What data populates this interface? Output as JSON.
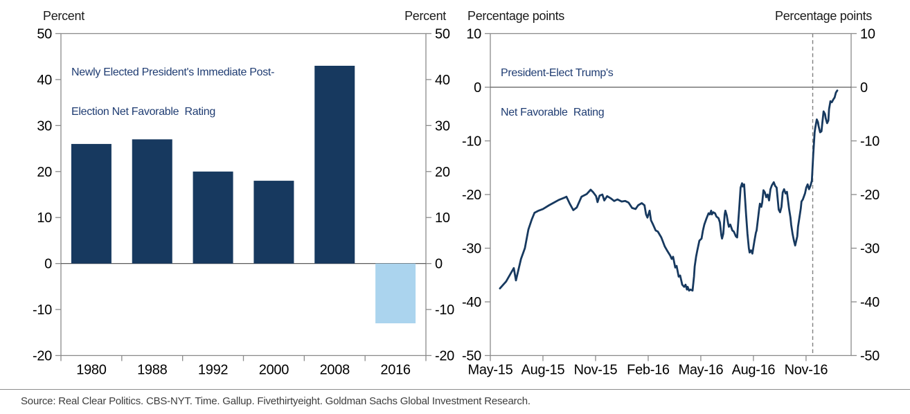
{
  "page": {
    "source_note": "Source: Real Clear Politics. CBS-NYT. Time. Gallup. Fivethirtyeight. Goldman Sachs Global Investment Research."
  },
  "style": {
    "box_color": "#8a8a8a",
    "zero_line_color": "#5a5a5a",
    "dashed_line_color": "#7f7f7f",
    "title_color": "#1f3c72",
    "text_color": "#000000"
  },
  "chart_data": [
    {
      "type": "bar",
      "panel": "left",
      "unit_label_left": "Percent",
      "unit_label_right": "Percent",
      "title": "Newly Elected President's Immediate Post-Election Net Favorable Rating",
      "title_lines": [
        "Newly Elected President's Immediate Post-",
        "Election Net Favorable  Rating"
      ],
      "categories": [
        "1980",
        "1988",
        "1992",
        "2000",
        "2008",
        "2016"
      ],
      "values": [
        26,
        27,
        20,
        18,
        43,
        -13
      ],
      "ylim": [
        -20,
        50
      ],
      "y_ticks": [
        50,
        40,
        30,
        20,
        10,
        0,
        -10,
        -20
      ],
      "grid": false,
      "bar_color": "#17395f",
      "highlight_color": "#abd4ee",
      "highlight_index": 5
    },
    {
      "type": "line",
      "panel": "right",
      "unit_label_left": "Percentage points",
      "unit_label_right": "Percentage points",
      "title": "President-Elect Trump's Net Favorable Rating",
      "title_lines": [
        "President-Elect Trump's",
        "Net Favorable  Rating"
      ],
      "ylim": [
        -50,
        10
      ],
      "y_ticks": [
        10,
        0,
        -10,
        -20,
        -30,
        -40,
        -50
      ],
      "x_tick_labels": [
        "May-15",
        "Aug-15",
        "Nov-15",
        "Feb-16",
        "May-16",
        "Aug-16",
        "Nov-16"
      ],
      "x_tick_months": [
        0,
        3,
        6,
        9,
        12,
        15,
        18
      ],
      "xlim_months": [
        0,
        20.57
      ],
      "event_line_month": 18.38,
      "grid": false,
      "line_color": "#17395f",
      "series": [
        {
          "name": "President-Elect Trump's Net Favorable Rating",
          "points": [
            [
              0.55,
              -37.5
            ],
            [
              0.9,
              -36.2
            ],
            [
              1.34,
              -33.7
            ],
            [
              1.46,
              -36.0
            ],
            [
              1.75,
              -32.0
            ],
            [
              1.97,
              -30.0
            ],
            [
              2.17,
              -26.5
            ],
            [
              2.37,
              -24.6
            ],
            [
              2.52,
              -23.4
            ],
            [
              2.75,
              -23.0
            ],
            [
              3.0,
              -22.7
            ],
            [
              3.35,
              -22.0
            ],
            [
              3.63,
              -21.5
            ],
            [
              3.9,
              -21.0
            ],
            [
              4.22,
              -20.6
            ],
            [
              4.34,
              -20.4
            ],
            [
              4.53,
              -21.7
            ],
            [
              4.73,
              -22.9
            ],
            [
              4.93,
              -22.4
            ],
            [
              5.2,
              -20.4
            ],
            [
              5.5,
              -19.9
            ],
            [
              5.72,
              -19.1
            ],
            [
              5.87,
              -19.6
            ],
            [
              6.03,
              -20.3
            ],
            [
              6.11,
              -21.4
            ],
            [
              6.23,
              -20.2
            ],
            [
              6.39,
              -20.0
            ],
            [
              6.5,
              -21.1
            ],
            [
              6.66,
              -20.3
            ],
            [
              6.86,
              -20.7
            ],
            [
              7.06,
              -21.2
            ],
            [
              7.25,
              -20.9
            ],
            [
              7.49,
              -21.3
            ],
            [
              7.69,
              -21.2
            ],
            [
              7.88,
              -21.5
            ],
            [
              8.08,
              -22.5
            ],
            [
              8.28,
              -22.7
            ],
            [
              8.43,
              -22.0
            ],
            [
              8.63,
              -21.6
            ],
            [
              8.79,
              -22.0
            ],
            [
              8.88,
              -23.7
            ],
            [
              8.96,
              -24.3
            ],
            [
              9.08,
              -23.0
            ],
            [
              9.16,
              -24.8
            ],
            [
              9.28,
              -25.6
            ],
            [
              9.43,
              -26.7
            ],
            [
              9.55,
              -26.9
            ],
            [
              9.75,
              -28.0
            ],
            [
              9.95,
              -29.7
            ],
            [
              10.07,
              -30.4
            ],
            [
              10.26,
              -31.4
            ],
            [
              10.34,
              -32.0
            ],
            [
              10.42,
              -31.6
            ],
            [
              10.54,
              -33.6
            ],
            [
              10.62,
              -33.3
            ],
            [
              10.74,
              -35.3
            ],
            [
              10.82,
              -35.1
            ],
            [
              10.94,
              -36.8
            ],
            [
              11.05,
              -37.2
            ],
            [
              11.13,
              -36.8
            ],
            [
              11.21,
              -37.7
            ],
            [
              11.25,
              -37.2
            ],
            [
              11.33,
              -37.9
            ],
            [
              11.41,
              -37.7
            ],
            [
              11.53,
              -37.9
            ],
            [
              11.61,
              -35.3
            ],
            [
              11.65,
              -33.4
            ],
            [
              11.73,
              -31.6
            ],
            [
              11.8,
              -30.4
            ],
            [
              11.92,
              -28.6
            ],
            [
              12.04,
              -28.2
            ],
            [
              12.12,
              -26.7
            ],
            [
              12.2,
              -25.6
            ],
            [
              12.32,
              -24.5
            ],
            [
              12.44,
              -23.5
            ],
            [
              12.51,
              -23.7
            ],
            [
              12.59,
              -23.0
            ],
            [
              12.63,
              -23.7
            ],
            [
              12.71,
              -23.3
            ],
            [
              12.81,
              -23.5
            ],
            [
              12.89,
              -24.1
            ],
            [
              13.01,
              -24.4
            ],
            [
              13.09,
              -25.2
            ],
            [
              13.17,
              -27.6
            ],
            [
              13.21,
              -28.2
            ],
            [
              13.28,
              -27.3
            ],
            [
              13.36,
              -23.7
            ],
            [
              13.4,
              -23.0
            ],
            [
              13.48,
              -23.9
            ],
            [
              13.56,
              -25.4
            ],
            [
              13.6,
              -26.0
            ],
            [
              13.68,
              -25.6
            ],
            [
              13.8,
              -26.7
            ],
            [
              13.88,
              -26.9
            ],
            [
              14.0,
              -27.8
            ],
            [
              14.07,
              -28.0
            ],
            [
              14.19,
              -22.6
            ],
            [
              14.27,
              -18.7
            ],
            [
              14.35,
              -17.9
            ],
            [
              14.39,
              -18.5
            ],
            [
              14.47,
              -18.1
            ],
            [
              14.54,
              -21.7
            ],
            [
              14.58,
              -23.7
            ],
            [
              14.66,
              -27.3
            ],
            [
              14.74,
              -30.0
            ],
            [
              14.78,
              -30.8
            ],
            [
              14.86,
              -30.4
            ],
            [
              14.94,
              -31.0
            ],
            [
              15.06,
              -28.6
            ],
            [
              15.14,
              -27.1
            ],
            [
              15.18,
              -26.7
            ],
            [
              15.33,
              -22.6
            ],
            [
              15.37,
              -21.7
            ],
            [
              15.45,
              -22.3
            ],
            [
              15.5,
              -21.5
            ],
            [
              15.57,
              -19.2
            ],
            [
              15.65,
              -19.6
            ],
            [
              15.73,
              -20.5
            ],
            [
              15.81,
              -20.0
            ],
            [
              15.89,
              -21.1
            ],
            [
              15.97,
              -19.0
            ],
            [
              16.05,
              -18.3
            ],
            [
              16.16,
              -17.7
            ],
            [
              16.24,
              -18.4
            ],
            [
              16.32,
              -18.7
            ],
            [
              16.44,
              -22.8
            ],
            [
              16.52,
              -23.3
            ],
            [
              16.6,
              -22.3
            ],
            [
              16.67,
              -19.6
            ],
            [
              16.75,
              -19.0
            ],
            [
              16.83,
              -19.8
            ],
            [
              16.91,
              -19.5
            ],
            [
              17.03,
              -22.6
            ],
            [
              17.11,
              -24.3
            ],
            [
              17.15,
              -25.6
            ],
            [
              17.23,
              -27.3
            ],
            [
              17.31,
              -28.6
            ],
            [
              17.38,
              -29.5
            ],
            [
              17.5,
              -27.8
            ],
            [
              17.54,
              -26.0
            ],
            [
              17.62,
              -24.3
            ],
            [
              17.7,
              -22.6
            ],
            [
              17.74,
              -21.3
            ],
            [
              17.82,
              -20.9
            ],
            [
              17.94,
              -19.8
            ],
            [
              18.01,
              -18.7
            ],
            [
              18.09,
              -18.1
            ],
            [
              18.17,
              -19.0
            ],
            [
              18.25,
              -18.4
            ],
            [
              18.33,
              -17.4
            ],
            [
              18.41,
              -12.5
            ],
            [
              18.49,
              -8.4
            ],
            [
              18.53,
              -7.5
            ],
            [
              18.61,
              -6.0
            ],
            [
              18.68,
              -6.5
            ],
            [
              18.72,
              -7.3
            ],
            [
              18.8,
              -8.4
            ],
            [
              18.88,
              -8.2
            ],
            [
              18.92,
              -6.9
            ],
            [
              19.0,
              -4.5
            ],
            [
              19.08,
              -5.0
            ],
            [
              19.12,
              -5.8
            ],
            [
              19.2,
              -6.7
            ],
            [
              19.27,
              -6.2
            ],
            [
              19.31,
              -4.1
            ],
            [
              19.39,
              -2.6
            ],
            [
              19.47,
              -2.8
            ],
            [
              19.55,
              -2.3
            ],
            [
              19.63,
              -1.9
            ],
            [
              19.7,
              -1.0
            ],
            [
              19.78,
              -0.6
            ]
          ]
        }
      ]
    }
  ]
}
